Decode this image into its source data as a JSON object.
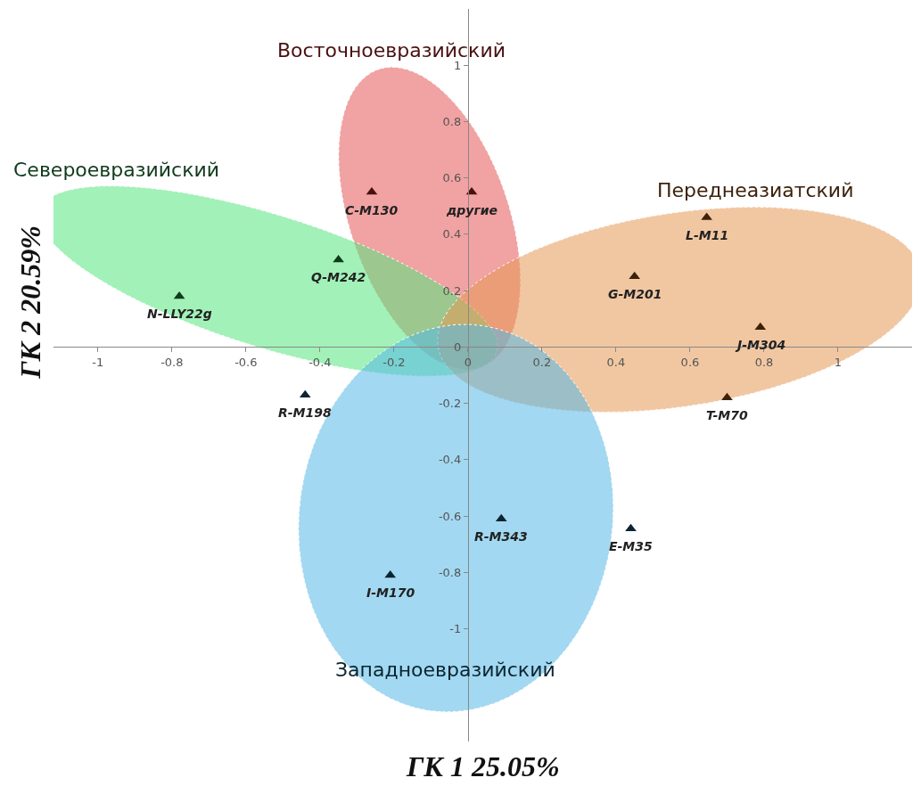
{
  "chart_data": {
    "type": "scatter",
    "xlabel": "ГК 1 25.05%",
    "ylabel": "ГК 2 20.59%",
    "xlim": [
      -1.12,
      1.2
    ],
    "ylim": [
      -1.4,
      1.2
    ],
    "xticks": [
      -1,
      -0.8,
      -0.6,
      -0.4,
      -0.2,
      0,
      0.2,
      0.4,
      0.6,
      0.8,
      1
    ],
    "yticks": [
      -1,
      -0.8,
      -0.6,
      -0.4,
      -0.2,
      0,
      0.2,
      0.4,
      0.6,
      0.8,
      1
    ],
    "grid": false,
    "legend": false,
    "marker": "triangle",
    "series": [
      {
        "name": "Восточноевразийский",
        "color": "#4a1010",
        "x": [
          -0.26,
          0.01
        ],
        "values": [
          0.55,
          0.55
        ]
      },
      {
        "name": "Североевразийский",
        "color": "#103a1c",
        "x": [
          -0.78,
          -0.35
        ],
        "values": [
          0.18,
          0.31
        ]
      },
      {
        "name": "Переднеазиатский",
        "color": "#3d220a",
        "x": [
          0.645,
          0.45,
          0.79,
          0.7
        ],
        "values": [
          0.46,
          0.25,
          0.07,
          -0.18
        ]
      },
      {
        "name": "Западноевразийский",
        "color": "#0a2430",
        "x": [
          -0.44,
          0.09,
          0.44,
          -0.21
        ],
        "values": [
          -0.17,
          -0.61,
          -0.645,
          -0.81
        ]
      }
    ],
    "annotations": [
      {
        "text": "C-M130",
        "x": -0.26,
        "y": 0.55
      },
      {
        "text": "другие",
        "x": 0.01,
        "y": 0.55
      },
      {
        "text": "N-LLY22g",
        "x": -0.78,
        "y": 0.18
      },
      {
        "text": "Q-M242",
        "x": -0.35,
        "y": 0.31
      },
      {
        "text": "L-M11",
        "x": 0.645,
        "y": 0.46
      },
      {
        "text": "G-M201",
        "x": 0.45,
        "y": 0.25
      },
      {
        "text": "J-M304",
        "x": 0.79,
        "y": 0.07
      },
      {
        "text": "T-M70",
        "x": 0.7,
        "y": -0.18
      },
      {
        "text": "R-M198",
        "x": -0.44,
        "y": -0.17
      },
      {
        "text": "R-M343",
        "x": 0.09,
        "y": -0.61
      },
      {
        "text": "E-M35",
        "x": 0.44,
        "y": -0.645
      },
      {
        "text": "I-M170",
        "x": -0.21,
        "y": -0.81
      }
    ]
  }
}
